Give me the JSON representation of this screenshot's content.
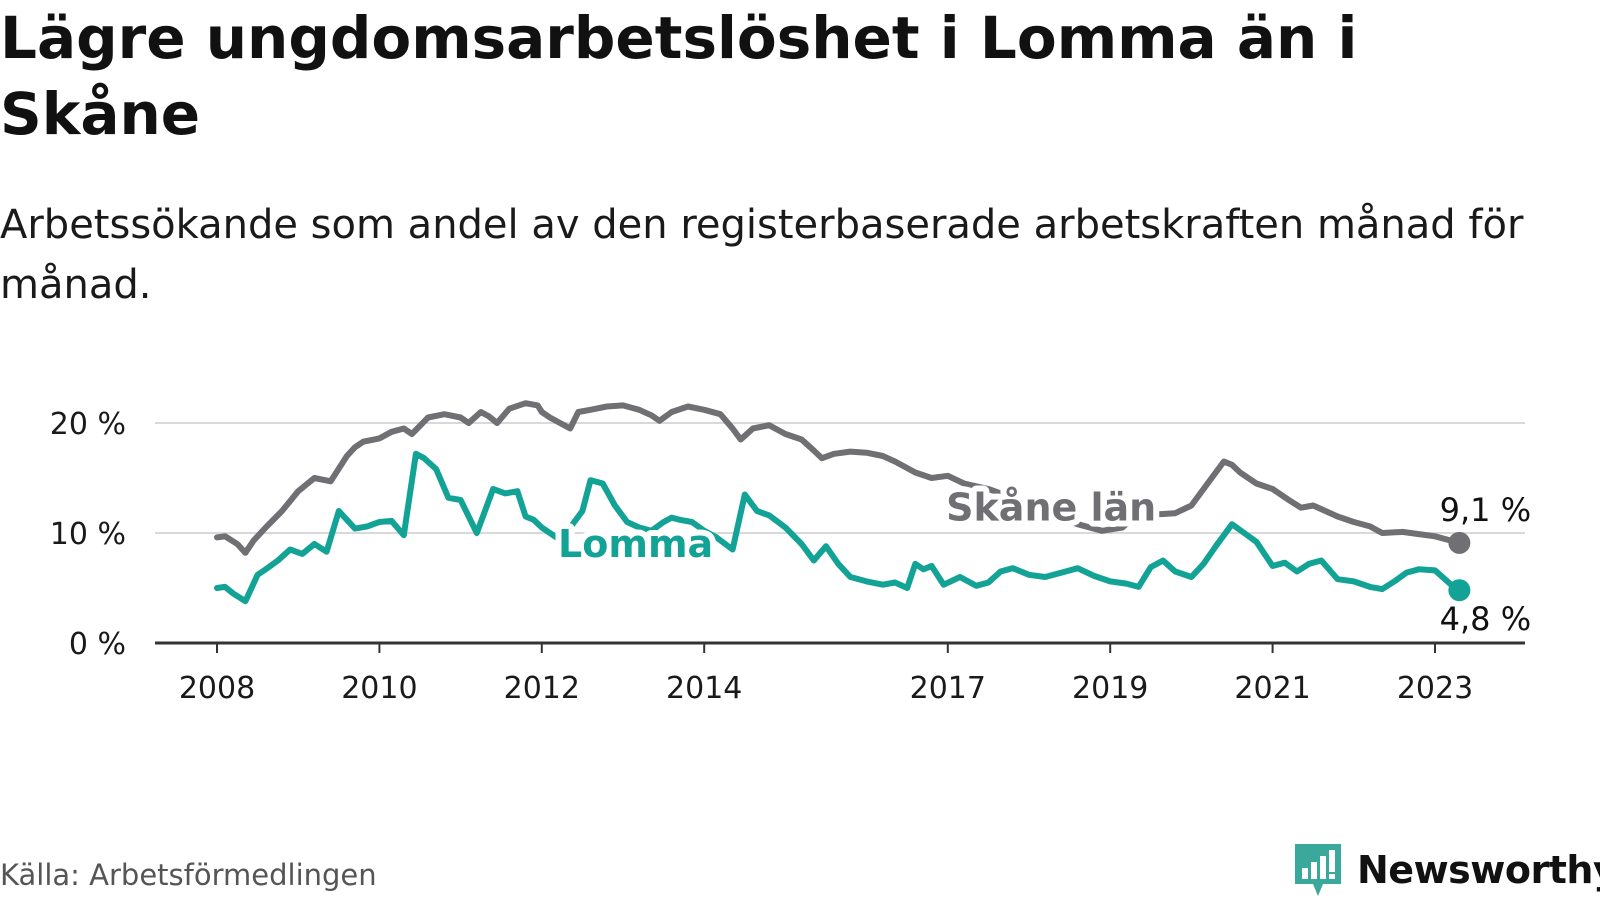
{
  "title": "Lägre ungdomsarbetslöshet i Lomma än i Skåne",
  "subtitle": "Arbetssökande som andel av den registerbaserade arbetskraften månad för månad.",
  "source": "Källa: Arbetsförmedlingen",
  "brand": {
    "name": "Newsworthy",
    "icon": "newsworthy-logo-icon",
    "color": "#3aa89a"
  },
  "colors": {
    "skane": "#6f6f74",
    "lomma": "#12a396",
    "grid": "#d9d9d9",
    "axis": "#333333"
  },
  "chart_data": {
    "type": "line",
    "title": "Lägre ungdomsarbetslöshet i Lomma än i Skåne",
    "xlabel": "",
    "ylabel": "",
    "xlim": [
      2008,
      2023.6
    ],
    "ylim": [
      0,
      20
    ],
    "yticks": [
      {
        "value": 0,
        "label": "0 %"
      },
      {
        "value": 10,
        "label": "10 %"
      },
      {
        "value": 20,
        "label": "20 %"
      }
    ],
    "xticks": [
      {
        "value": 2008,
        "label": "2008"
      },
      {
        "value": 2010,
        "label": "2010"
      },
      {
        "value": 2012,
        "label": "2012"
      },
      {
        "value": 2014,
        "label": "2014"
      },
      {
        "value": 2017,
        "label": "2017"
      },
      {
        "value": 2019,
        "label": "2019"
      },
      {
        "value": 2021,
        "label": "2021"
      },
      {
        "value": 2023,
        "label": "2023"
      }
    ],
    "series": [
      {
        "name": "Skåne län",
        "color": "#6f6f74",
        "end_label": "9,1 %",
        "x": [
          2008,
          2008.1,
          2008.25,
          2008.35,
          2008.45,
          2008.6,
          2008.8,
          2009.0,
          2009.2,
          2009.4,
          2009.6,
          2009.7,
          2009.8,
          2010.0,
          2010.15,
          2010.3,
          2010.4,
          2010.6,
          2010.8,
          2011.0,
          2011.1,
          2011.25,
          2011.35,
          2011.45,
          2011.6,
          2011.8,
          2011.95,
          2012.0,
          2012.1,
          2012.35,
          2012.45,
          2012.6,
          2012.8,
          2013.0,
          2013.2,
          2013.35,
          2013.45,
          2013.6,
          2013.8,
          2014.0,
          2014.2,
          2014.35,
          2014.45,
          2014.6,
          2014.8,
          2015.0,
          2015.2,
          2015.35,
          2015.45,
          2015.6,
          2015.8,
          2016.0,
          2016.2,
          2016.35,
          2016.45,
          2016.6,
          2016.8,
          2017.0,
          2017.2,
          2017.5,
          2017.8,
          2018.0,
          2018.3,
          2018.6,
          2018.9,
          2019.15,
          2019.3,
          2019.45,
          2019.6,
          2019.8,
          2020.0,
          2020.2,
          2020.4,
          2020.5,
          2020.6,
          2020.8,
          2021.0,
          2021.2,
          2021.35,
          2021.5,
          2021.65,
          2021.8,
          2022.0,
          2022.2,
          2022.35,
          2022.6,
          2022.8,
          2023.0,
          2023.3
        ],
        "values": [
          9.6,
          9.7,
          9.0,
          8.2,
          9.3,
          10.5,
          12.0,
          13.8,
          15.0,
          14.7,
          17.0,
          17.8,
          18.3,
          18.6,
          19.2,
          19.5,
          19.0,
          20.5,
          20.8,
          20.5,
          20.0,
          21.0,
          20.6,
          20.0,
          21.3,
          21.8,
          21.6,
          21.0,
          20.5,
          19.5,
          21.0,
          21.2,
          21.5,
          21.6,
          21.2,
          20.7,
          20.2,
          21.0,
          21.5,
          21.2,
          20.8,
          19.5,
          18.5,
          19.5,
          19.8,
          19.0,
          18.5,
          17.5,
          16.8,
          17.2,
          17.4,
          17.3,
          17.0,
          16.5,
          16.1,
          15.5,
          15.0,
          15.2,
          14.5,
          14.0,
          13.2,
          12.8,
          11.5,
          10.8,
          10.2,
          10.5,
          11.5,
          11.8,
          11.7,
          11.8,
          12.5,
          14.5,
          16.5,
          16.2,
          15.5,
          14.5,
          14.0,
          13.0,
          12.3,
          12.5,
          12.0,
          11.5,
          11.0,
          10.6,
          10.0,
          10.1,
          9.9,
          9.7,
          9.1
        ]
      },
      {
        "name": "Lomma",
        "color": "#12a396",
        "end_label": "4,8 %",
        "x": [
          2008,
          2008.1,
          2008.2,
          2008.35,
          2008.5,
          2008.6,
          2008.75,
          2008.9,
          2009.05,
          2009.2,
          2009.35,
          2009.5,
          2009.6,
          2009.7,
          2009.85,
          2010.0,
          2010.15,
          2010.3,
          2010.45,
          2010.55,
          2010.7,
          2010.85,
          2011.0,
          2011.2,
          2011.4,
          2011.55,
          2011.7,
          2011.8,
          2011.9,
          2012.0,
          2012.1,
          2012.2,
          2012.35,
          2012.5,
          2012.6,
          2012.75,
          2012.9,
          2013.05,
          2013.2,
          2013.35,
          2013.5,
          2013.6,
          2013.7,
          2013.85,
          2014.0,
          2014.15,
          2014.35,
          2014.5,
          2014.65,
          2014.8,
          2015.0,
          2015.2,
          2015.35,
          2015.5,
          2015.65,
          2015.8,
          2016.0,
          2016.2,
          2016.35,
          2016.5,
          2016.6,
          2016.7,
          2016.8,
          2016.95,
          2017.15,
          2017.35,
          2017.5,
          2017.65,
          2017.8,
          2018.0,
          2018.2,
          2018.4,
          2018.6,
          2018.8,
          2019.0,
          2019.2,
          2019.35,
          2019.5,
          2019.65,
          2019.8,
          2020.0,
          2020.15,
          2020.3,
          2020.5,
          2020.65,
          2020.8,
          2021.0,
          2021.15,
          2021.3,
          2021.45,
          2021.6,
          2021.8,
          2022.0,
          2022.2,
          2022.35,
          2022.5,
          2022.65,
          2022.8,
          2023.0,
          2023.2,
          2023.3
        ],
        "values": [
          5.0,
          5.1,
          4.5,
          3.8,
          6.2,
          6.7,
          7.5,
          8.5,
          8.1,
          9.0,
          8.3,
          12.0,
          11.2,
          10.4,
          10.6,
          11.0,
          11.1,
          9.8,
          17.2,
          16.8,
          15.8,
          13.2,
          13.0,
          10.0,
          14.0,
          13.6,
          13.8,
          11.5,
          11.2,
          10.5,
          10.0,
          9.5,
          10.5,
          12.0,
          14.8,
          14.5,
          12.5,
          11.0,
          10.5,
          10.2,
          11.0,
          11.4,
          11.2,
          11.0,
          10.2,
          9.6,
          8.5,
          13.5,
          12.0,
          11.6,
          10.5,
          9.0,
          7.5,
          8.8,
          7.2,
          6.0,
          5.6,
          5.3,
          5.5,
          5.0,
          7.2,
          6.7,
          7.0,
          5.3,
          6.0,
          5.2,
          5.5,
          6.5,
          6.8,
          6.2,
          6.0,
          6.4,
          6.8,
          6.1,
          5.6,
          5.4,
          5.1,
          6.9,
          7.5,
          6.5,
          6.0,
          7.2,
          8.8,
          10.8,
          10.0,
          9.2,
          7.0,
          7.3,
          6.5,
          7.2,
          7.5,
          5.8,
          5.6,
          5.1,
          4.9,
          5.6,
          6.4,
          6.7,
          6.6,
          5.3,
          4.8
        ]
      }
    ]
  }
}
